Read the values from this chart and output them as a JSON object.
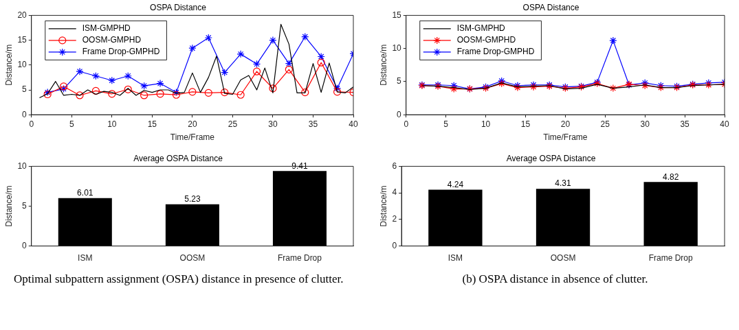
{
  "chart_data": [
    {
      "type": "line",
      "title": "OSPA Distance",
      "xlabel": "Time/Frame",
      "ylabel": "Distance/m",
      "xlim": [
        0,
        40
      ],
      "xticks": [
        0,
        5,
        10,
        15,
        20,
        25,
        30,
        35,
        40
      ],
      "ylim": [
        0,
        20
      ],
      "yticks": [
        0,
        5,
        10,
        15,
        20
      ],
      "legend": "top left",
      "series": [
        {
          "name": "ISM-GMPHD",
          "color": "#000000",
          "marker": "none",
          "x": [
            1,
            2,
            3,
            4,
            5,
            6,
            7,
            8,
            9,
            10,
            11,
            12,
            13,
            14,
            15,
            16,
            17,
            18,
            19,
            20,
            21,
            22,
            23,
            24,
            25,
            26,
            27,
            28,
            29,
            30,
            31,
            32,
            33,
            34,
            35,
            36,
            37,
            38,
            39,
            40
          ],
          "values": [
            3.4,
            4.2,
            6.7,
            3.9,
            4.1,
            3.9,
            5.0,
            4.1,
            4.7,
            4.5,
            3.9,
            5.3,
            3.9,
            4.9,
            4.5,
            5.0,
            5.0,
            4.3,
            4.5,
            8.4,
            4.5,
            7.5,
            11.8,
            4.3,
            4.1,
            7.0,
            7.9,
            5.0,
            9.4,
            4.4,
            18.2,
            14.2,
            4.4,
            4.4,
            10.3,
            4.5,
            10.4,
            4.6,
            4.4,
            5.6
          ]
        },
        {
          "name": "OOSM-GMPHD",
          "color": "#ff0000",
          "marker": "circle",
          "x": [
            2,
            4,
            6,
            8,
            10,
            12,
            14,
            16,
            18,
            20,
            22,
            24,
            26,
            28,
            30,
            32,
            34,
            36,
            38,
            40
          ],
          "values": [
            4.1,
            5.7,
            3.9,
            4.8,
            4.2,
            5.1,
            3.9,
            4.2,
            4.0,
            4.6,
            4.4,
            4.5,
            4.0,
            8.7,
            5.3,
            9.1,
            4.5,
            10.5,
            4.6,
            4.5
          ]
        },
        {
          "name": "Frame Drop-GMPHD",
          "color": "#0000ff",
          "marker": "cross",
          "x": [
            2,
            4,
            6,
            8,
            10,
            12,
            14,
            16,
            18,
            20,
            22,
            24,
            26,
            28,
            30,
            32,
            34,
            36,
            38,
            40
          ],
          "values": [
            4.5,
            5.2,
            8.7,
            7.8,
            6.9,
            7.8,
            5.8,
            6.3,
            4.5,
            13.4,
            15.5,
            8.5,
            12.2,
            10.2,
            15.0,
            10.3,
            15.7,
            11.7,
            5.3,
            12.3
          ]
        }
      ]
    },
    {
      "type": "line",
      "title": "OSPA Distance",
      "xlabel": "Time/Frame",
      "ylabel": "Distance/m",
      "xlim": [
        0,
        40
      ],
      "xticks": [
        0,
        5,
        10,
        15,
        20,
        25,
        30,
        35,
        40
      ],
      "ylim": [
        0,
        15
      ],
      "yticks": [
        0,
        5,
        10,
        15
      ],
      "legend": "top left",
      "x": [
        2,
        4,
        6,
        8,
        10,
        12,
        14,
        16,
        18,
        20,
        22,
        24,
        26,
        28,
        30,
        32,
        34,
        36,
        38,
        40
      ],
      "series": [
        {
          "name": "ISM-GMPHD",
          "color": "#000000",
          "marker": "none",
          "values": [
            4.4,
            4.3,
            4.1,
            3.8,
            4.0,
            4.8,
            4.2,
            4.3,
            4.4,
            3.9,
            4.0,
            4.6,
            4.0,
            4.2,
            4.5,
            4.1,
            4.1,
            4.4,
            4.5,
            4.6
          ]
        },
        {
          "name": "OOSM-GMPHD",
          "color": "#ff0000",
          "marker": "cross",
          "values": [
            4.4,
            4.3,
            3.9,
            3.9,
            4.0,
            4.7,
            4.1,
            4.2,
            4.3,
            4.0,
            4.2,
            4.7,
            4.0,
            4.6,
            4.4,
            4.1,
            4.1,
            4.5,
            4.5,
            4.6
          ]
        },
        {
          "name": "Frame Drop-GMPHD",
          "color": "#0000ff",
          "marker": "cross",
          "values": [
            4.5,
            4.5,
            4.4,
            3.9,
            4.2,
            5.1,
            4.4,
            4.5,
            4.5,
            4.2,
            4.3,
            4.9,
            11.2,
            4.5,
            4.8,
            4.4,
            4.3,
            4.6,
            4.8,
            4.9
          ]
        }
      ]
    },
    {
      "type": "bar",
      "title": "Average OSPA Distance",
      "ylabel": "Distance/m",
      "categories": [
        "ISM",
        "OOSM",
        "Frame Drop"
      ],
      "values": [
        6.01,
        5.23,
        9.41
      ],
      "color": "#000000",
      "ylim": [
        0,
        10
      ],
      "yticks": [
        0,
        5,
        10
      ],
      "data_labels": true,
      "annotations": [
        "Optimal subpattern assignment (OSPA) distance in presence of clutter."
      ]
    },
    {
      "type": "bar",
      "title": "Average OSPA Distance",
      "ylabel": "Distance/m",
      "categories": [
        "ISM",
        "OOSM",
        "Frame Drop"
      ],
      "values": [
        4.24,
        4.31,
        4.82
      ],
      "color": "#000000",
      "ylim": [
        0,
        6
      ],
      "yticks": [
        0,
        2,
        4,
        6
      ],
      "data_labels": true,
      "annotations": [
        "(b) OSPA distance in absence of clutter."
      ]
    }
  ]
}
